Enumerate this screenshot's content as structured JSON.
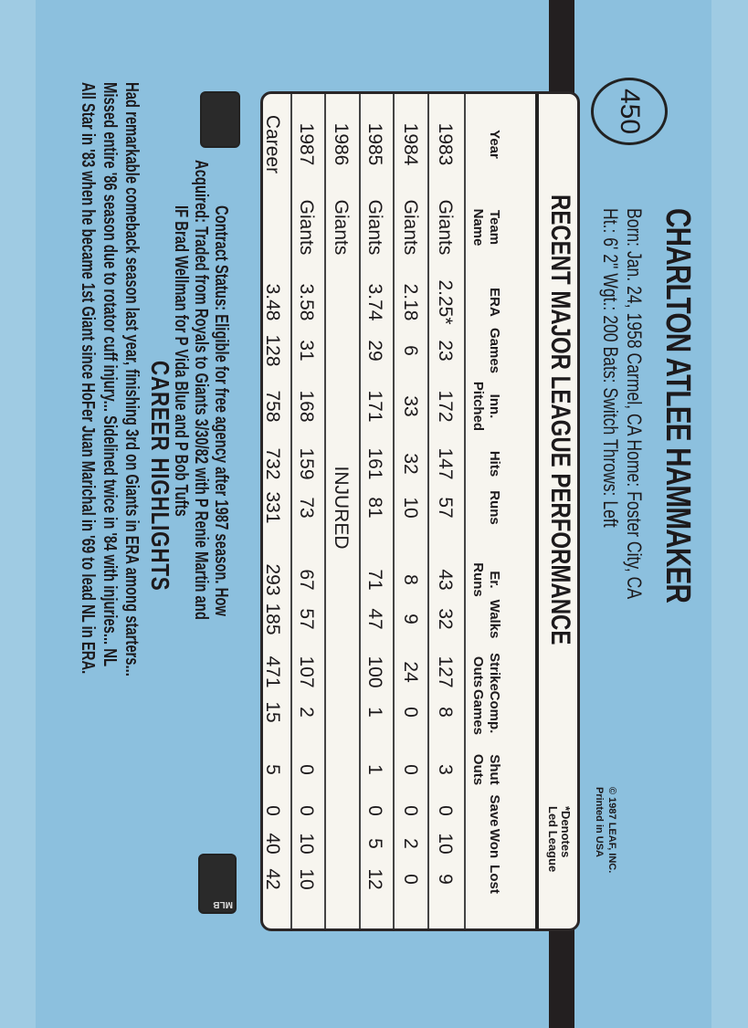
{
  "card_number": "450",
  "player": {
    "name": "CHARLTON ATLEE HAMMAKER",
    "bio_line1": "Born: Jan. 24, 1958   Carmel, CA   Home: Foster City, CA",
    "bio_line2": "Ht.: 6' 2\"   Wgt.: 200   Bats: Switch   Throws: Left"
  },
  "copyright": {
    "line1": "© 1987 LEAF, INC.",
    "line2": "Printed in USA"
  },
  "stats": {
    "title": "RECENT MAJOR LEAGUE PERFORMANCE",
    "footnote_line1": "*Denotes",
    "footnote_line2": "Led League",
    "headers": [
      [
        "",
        "Year"
      ],
      [
        "Team",
        "Name"
      ],
      [
        "",
        "ERA"
      ],
      [
        "",
        "Games"
      ],
      [
        "Inn.",
        "Pitched"
      ],
      [
        "",
        "Hits"
      ],
      [
        "",
        "Runs"
      ],
      [
        "Er.",
        "Runs"
      ],
      [
        "",
        "Walks"
      ],
      [
        "Strike",
        "Outs"
      ],
      [
        "Comp.",
        "Games"
      ],
      [
        "Shut",
        "Outs"
      ],
      [
        "",
        "Save"
      ],
      [
        "",
        "Won"
      ],
      [
        "",
        "Lost"
      ]
    ],
    "rows": [
      [
        "1983",
        "Giants",
        "2.25*",
        "23",
        "172",
        "147",
        "57",
        "43",
        "32",
        "127",
        "8",
        "3",
        "0",
        "10",
        "9"
      ],
      [
        "1984",
        "Giants",
        "2.18",
        "6",
        "33",
        "32",
        "10",
        "8",
        "9",
        "24",
        "0",
        "0",
        "0",
        "2",
        "0"
      ],
      [
        "1985",
        "Giants",
        "3.74",
        "29",
        "171",
        "161",
        "81",
        "71",
        "47",
        "100",
        "1",
        "1",
        "0",
        "5",
        "12"
      ],
      [
        "1986",
        "Giants",
        "INJURED"
      ],
      [
        "1987",
        "Giants",
        "3.58",
        "31",
        "168",
        "159",
        "73",
        "67",
        "57",
        "107",
        "2",
        "0",
        "0",
        "10",
        "10"
      ],
      [
        "Career",
        "",
        "3.48",
        "128",
        "758",
        "732",
        "331",
        "293",
        "185",
        "471",
        "15",
        "5",
        "0",
        "40",
        "42"
      ]
    ]
  },
  "contract": {
    "line1": "Contract Status: Eligible for free agency after 1987 season. How",
    "line2": "Acquired: Traded from Royals to Giants 3/30/82 with P Renie Martin and",
    "line3": "IF Brad Wellman for P Vida Blue and P Bob Tufts"
  },
  "highlights": {
    "title": "CAREER HIGHLIGHTS",
    "line1": "Had remarkable comeback season last year, finishing 3rd on Giants in ERA among starters...",
    "line2": "Missed entire '86 season due to rotator cuff injury... Sidelined twice in '84 with injuries... NL",
    "line3": "All Star in '83 when he became 1st Giant since HoFer Juan Marichal in '69 to lead NL in ERA."
  },
  "logos": {
    "left": "mlbpa-logo",
    "right": "mlb-logo",
    "right_text": "MLB"
  },
  "colors": {
    "card_blue": "#8cc0de",
    "ink": "#1d1a1c",
    "table_bg": "#f7f5ef"
  }
}
